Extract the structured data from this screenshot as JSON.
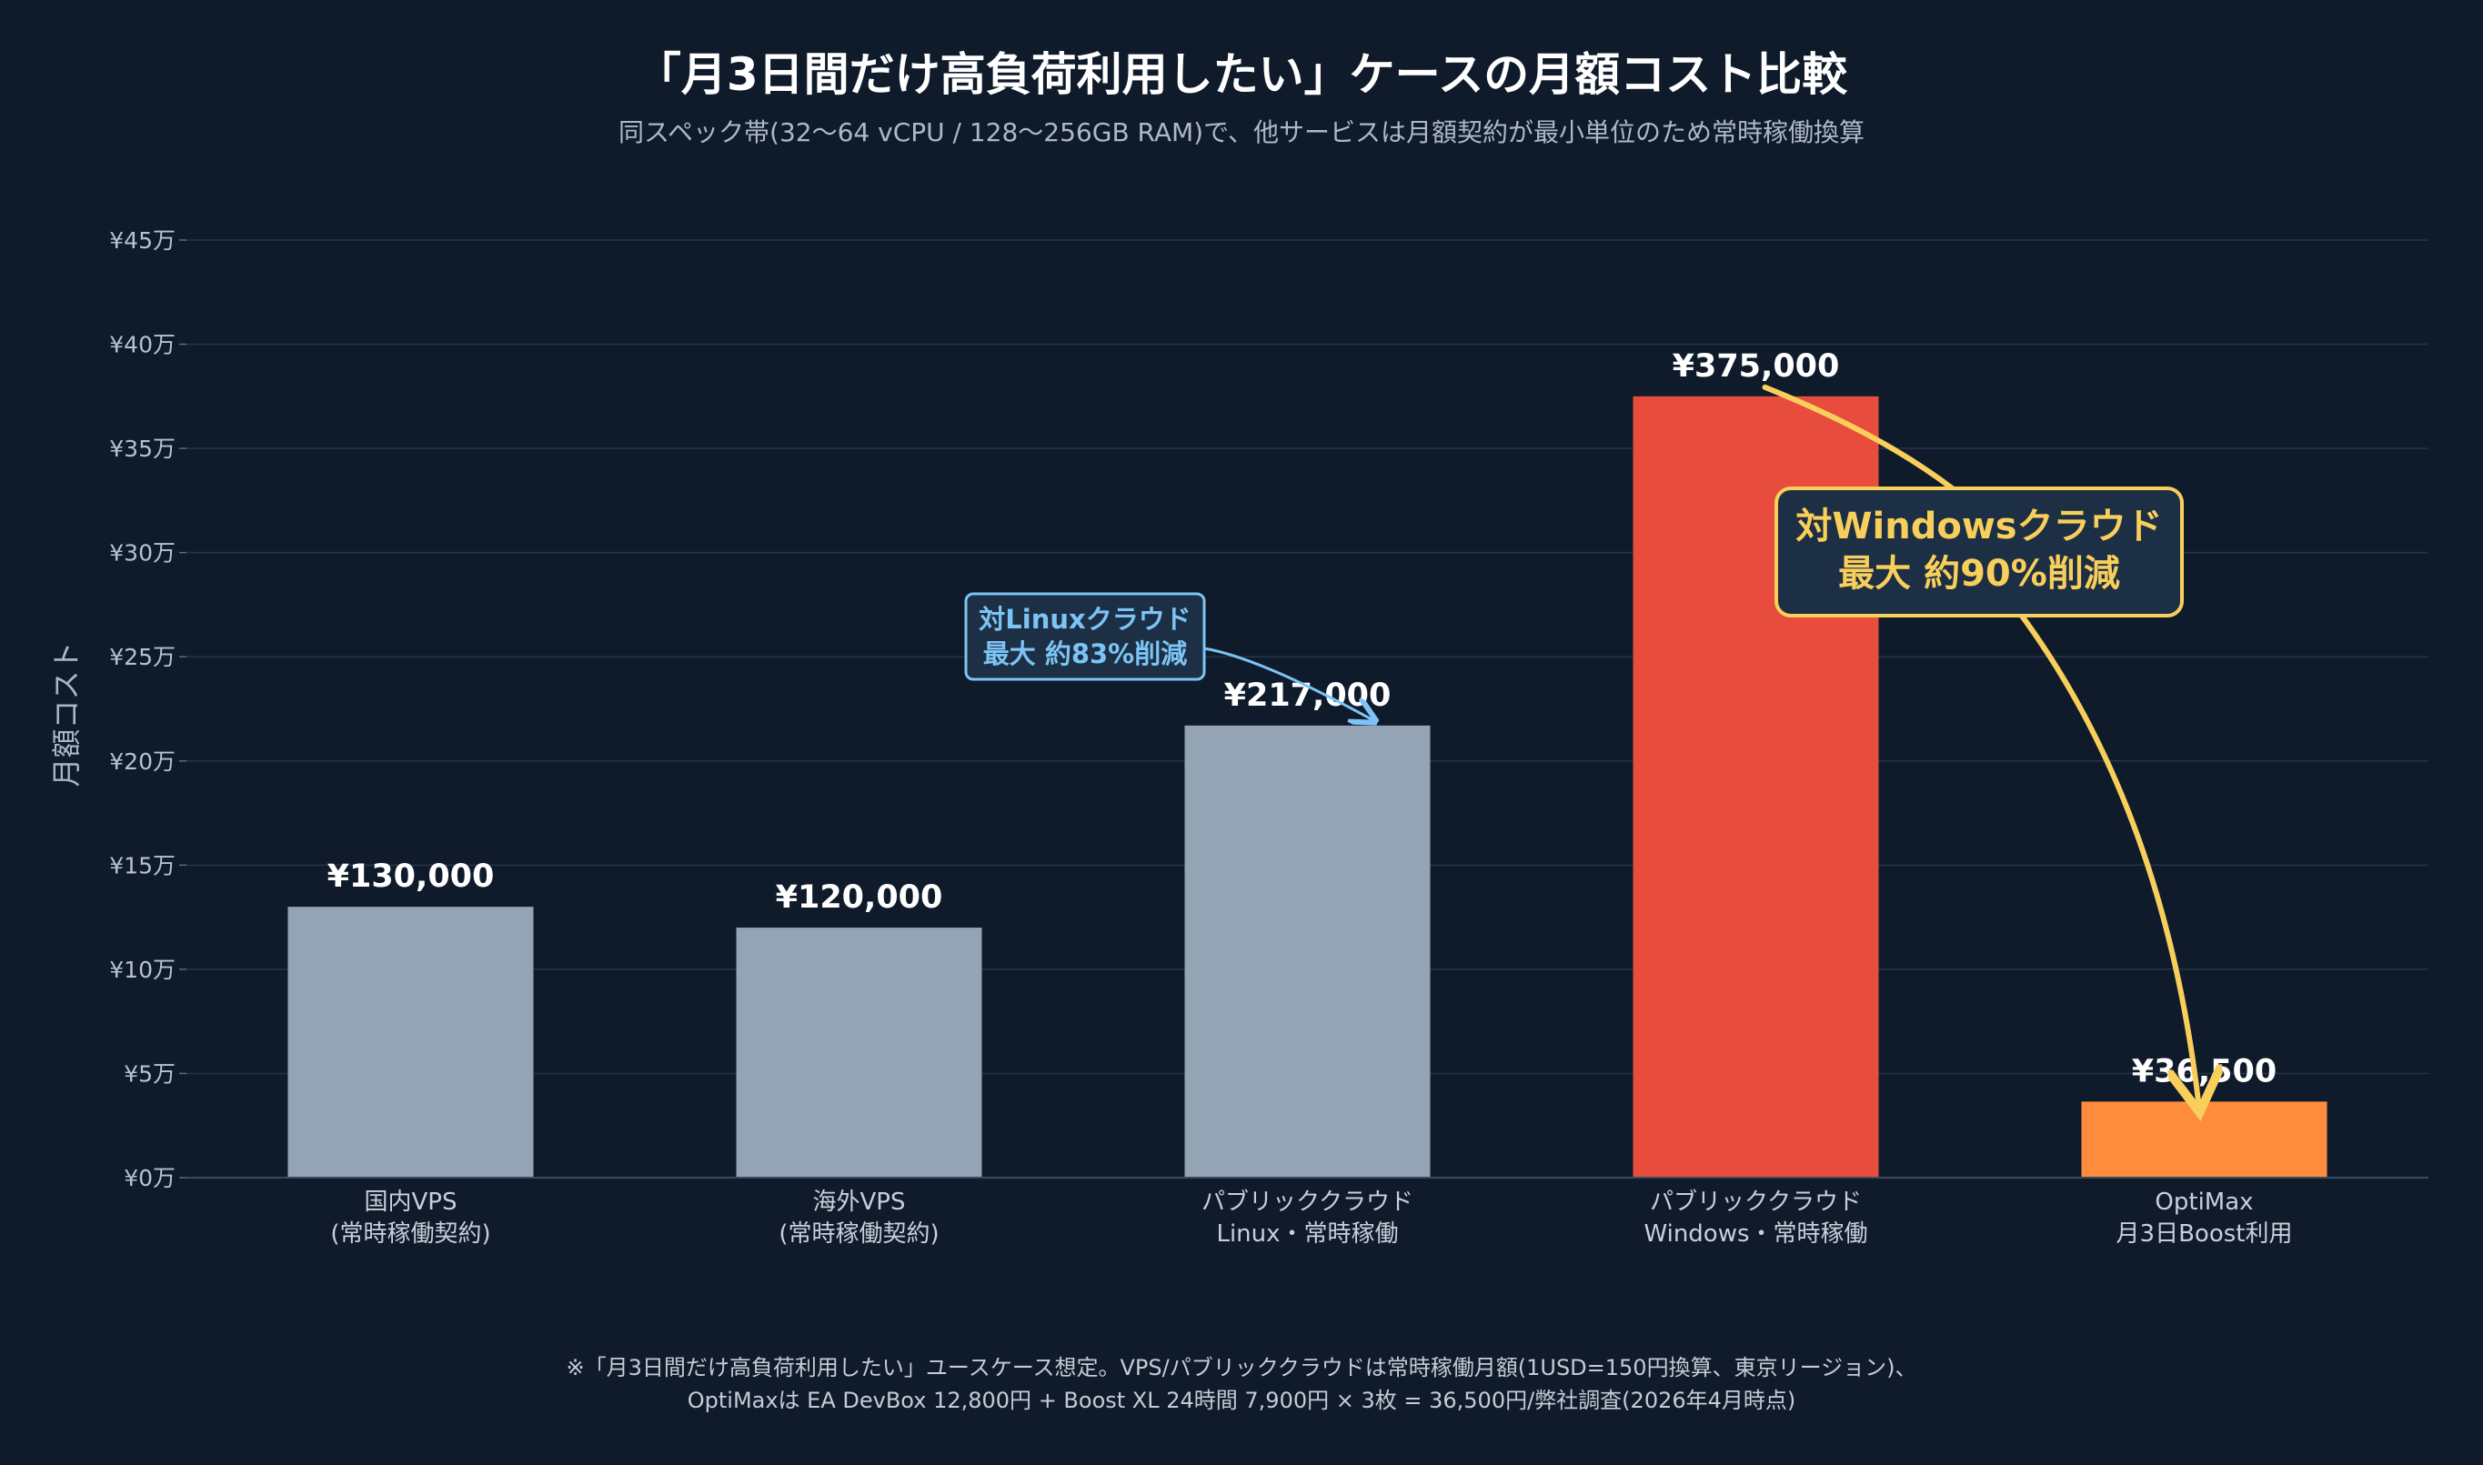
{
  "chart_data": {
    "type": "bar",
    "title": "「月3日間だけ高負荷利用したい」ケースの月額コスト比較",
    "subtitle": "同スペック帯(32〜64 vCPU / 128〜256GB RAM)で、他サービスは月額契約が最小単位のため常時稼働換算",
    "ylabel": "月額コスト",
    "xlabel": "",
    "ylim": [
      0,
      450000
    ],
    "yticks": [
      0,
      50000,
      100000,
      150000,
      200000,
      250000,
      300000,
      350000,
      400000,
      450000
    ],
    "ytick_labels": [
      "¥0万",
      "¥5万",
      "¥10万",
      "¥15万",
      "¥20万",
      "¥25万",
      "¥30万",
      "¥35万",
      "¥40万",
      "¥45万"
    ],
    "grid": true,
    "categories": [
      [
        "国内VPS",
        "(常時稼働契約)"
      ],
      [
        "海外VPS",
        "(常時稼働契約)"
      ],
      [
        "パブリッククラウド",
        "Linux・常時稼働"
      ],
      [
        "パブリッククラウド",
        "Windows・常時稼働"
      ],
      [
        "OptiMax",
        "月3日Boost利用"
      ]
    ],
    "values": [
      130000,
      120000,
      217000,
      375000,
      36500
    ],
    "value_labels": [
      "¥130,000",
      "¥120,000",
      "¥217,000",
      "¥375,000",
      "¥36,500"
    ],
    "bar_colors": [
      "#94a4b5",
      "#94a4b5",
      "#94a4b5",
      "#e74c3c",
      "#ff8c3c"
    ],
    "annotations": [
      {
        "lines": [
          "対Linuxクラウド",
          "最大 約83%削減"
        ],
        "target_category": 2,
        "color": "#7cc4f5",
        "background": "#1d2f45"
      },
      {
        "lines": [
          "対Windowsクラウド",
          "最大 約90%削減"
        ],
        "target_category": 4,
        "source_category": 3,
        "color": "#f8cf5a",
        "background": "#1d2f45"
      }
    ]
  },
  "footnote": {
    "line1": "※「月3日間だけ高負荷利用したい」ユースケース想定。VPS/パブリッククラウドは常時稼働月額(1USD=150円換算、東京リージョン)、",
    "line2": "OptiMaxは EA DevBox 12,800円 + Boost XL 24時間 7,900円 × 3枚 = 36,500円/弊社調査(2026年4月時点)"
  }
}
